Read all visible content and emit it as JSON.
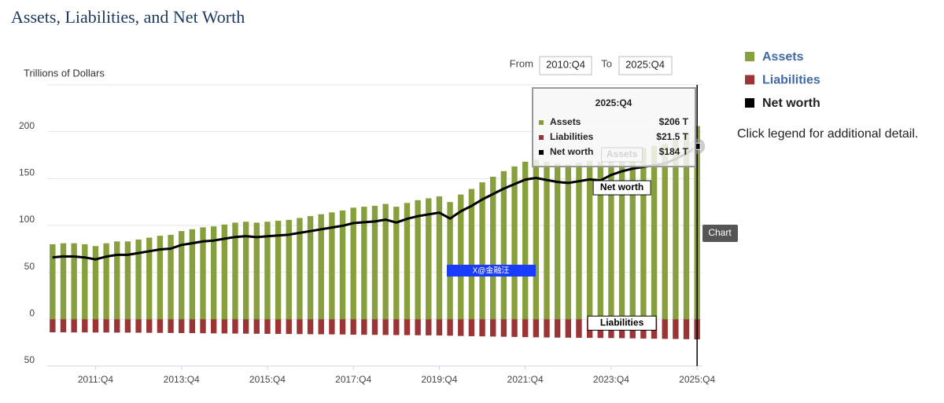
{
  "chart_data": {
    "type": "combo",
    "title": "Assets, Liabilities, and Net Worth",
    "y_label": "Trillions of Dollars",
    "categories": [
      null,
      null,
      null,
      null,
      "2011:Q4",
      null,
      null,
      null,
      null,
      null,
      null,
      null,
      "2013:Q4",
      null,
      null,
      null,
      null,
      null,
      null,
      null,
      "2015:Q4",
      null,
      null,
      null,
      null,
      null,
      null,
      null,
      "2017:Q4",
      null,
      null,
      null,
      null,
      null,
      null,
      null,
      "2019:Q4",
      null,
      null,
      null,
      null,
      null,
      null,
      null,
      "2021:Q4",
      null,
      null,
      null,
      null,
      null,
      null,
      null,
      "2023:Q4",
      null,
      null,
      null,
      null,
      null,
      null,
      null,
      "2025:Q4"
    ],
    "series": [
      {
        "name": "Assets",
        "type": "bar",
        "color": "#87a03d",
        "values": [
          80,
          81,
          81,
          80,
          78,
          81,
          83,
          83,
          85,
          87,
          89,
          90,
          94,
          96,
          98,
          99,
          101,
          103,
          104,
          103,
          104,
          105,
          106,
          108,
          110,
          112,
          114,
          116,
          119,
          120,
          121,
          123,
          120,
          124,
          127,
          129,
          131,
          125,
          133,
          139,
          146,
          152,
          158,
          163,
          168,
          170,
          168,
          166,
          165,
          167,
          169,
          168,
          174,
          178,
          181,
          183,
          185,
          187,
          192,
          198,
          206
        ]
      },
      {
        "name": "Liabilities",
        "type": "bar",
        "color": "#9b3434",
        "values": [
          -14.0,
          -14.0,
          -14.1,
          -14.1,
          -14.2,
          -14.2,
          -14.3,
          -14.3,
          -14.4,
          -14.5,
          -14.6,
          -14.7,
          -14.8,
          -14.9,
          -15.0,
          -15.1,
          -15.2,
          -15.3,
          -15.4,
          -15.5,
          -15.6,
          -15.7,
          -15.8,
          -15.9,
          -16.0,
          -16.1,
          -16.2,
          -16.3,
          -16.5,
          -16.6,
          -16.7,
          -16.8,
          -16.9,
          -17.0,
          -17.1,
          -17.2,
          -17.3,
          -17.6,
          -17.9,
          -18.1,
          -18.3,
          -18.5,
          -18.7,
          -18.9,
          -19.1,
          -19.3,
          -19.5,
          -19.6,
          -19.7,
          -19.8,
          -19.9,
          -20.0,
          -20.1,
          -20.2,
          -20.4,
          -20.6,
          -20.8,
          -21.0,
          -21.1,
          -21.3,
          -21.5
        ]
      },
      {
        "name": "Net worth",
        "type": "line",
        "color": "#000000",
        "values": [
          66.0,
          67.0,
          66.9,
          65.9,
          63.8,
          66.8,
          68.7,
          68.7,
          70.6,
          72.5,
          74.4,
          75.3,
          79.2,
          81.1,
          83.0,
          83.9,
          85.8,
          87.7,
          88.6,
          87.5,
          88.4,
          89.3,
          90.2,
          92.1,
          94.0,
          95.9,
          97.8,
          99.7,
          102.5,
          103.4,
          104.3,
          106.2,
          103.1,
          107.0,
          109.9,
          111.8,
          113.7,
          107.4,
          115.1,
          120.9,
          127.7,
          133.5,
          139.3,
          144.1,
          148.9,
          150.7,
          148.5,
          146.4,
          145.3,
          147.2,
          149.1,
          148.0,
          153.9,
          157.8,
          160.6,
          162.4,
          164.2,
          166.0,
          170.9,
          176.7,
          184.4
        ]
      }
    ],
    "ylim": [
      -50,
      250
    ],
    "yticks": [
      {
        "value": -50,
        "label": "50"
      },
      0,
      50,
      100,
      150,
      200
    ],
    "grid": true,
    "annotations": [
      "Assets",
      "Net worth",
      "Liabilities"
    ],
    "tooltip": {
      "title": "2025:Q4",
      "items": [
        "$206 T",
        "$21.5 T",
        "$184 T"
      ]
    },
    "range": {
      "from_label": "From",
      "from": "2010:Q4",
      "to_label": "To",
      "to": "2025:Q4"
    },
    "legend_note": "Click legend for additional detail.",
    "button": "Chart",
    "watermark": "X@金融汪"
  }
}
